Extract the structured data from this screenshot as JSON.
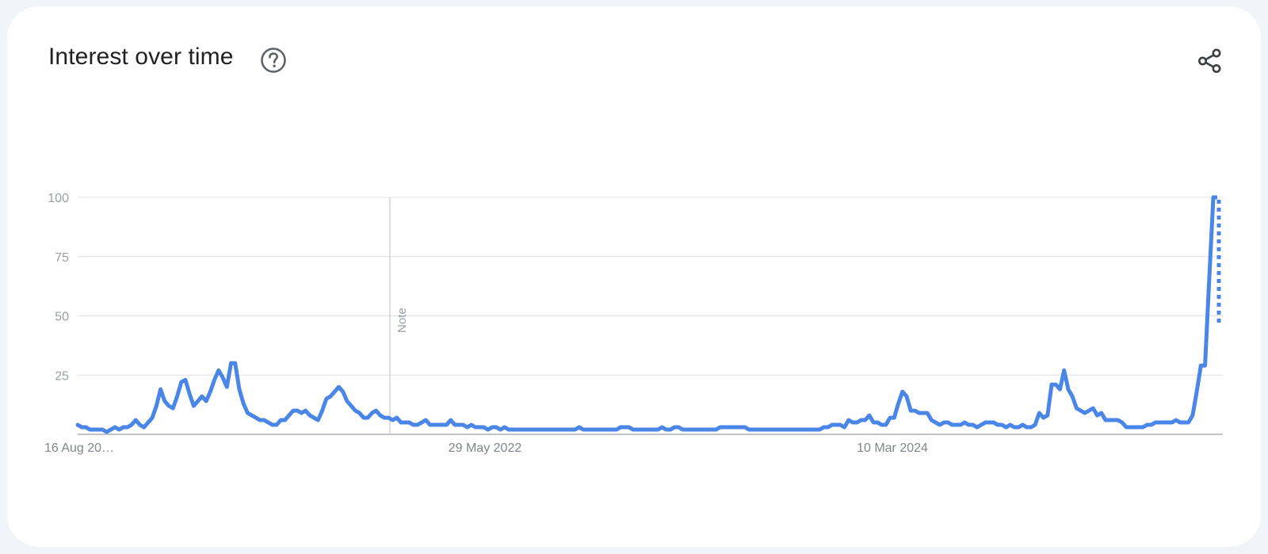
{
  "card": {
    "title": "Interest over time",
    "help_icon": "help-circle-icon",
    "share_icon": "share-icon"
  },
  "colors": {
    "series": "#4a86e8",
    "grid": "#e0e0e0",
    "axis": "#9aa0a6",
    "note_line": "#cfcfcf"
  },
  "chart_data": {
    "type": "line",
    "title": "Interest over time",
    "xlabel": "",
    "ylabel": "",
    "ylim": [
      0,
      100
    ],
    "yticks": [
      25,
      50,
      75,
      100
    ],
    "xtick_labels": [
      "16 Aug 20…",
      "29 May 2022",
      "10 Mar 2024"
    ],
    "grid": true,
    "legend": "none",
    "note": {
      "label": "Note"
    },
    "series": [
      {
        "values": [
          4,
          3,
          3,
          2,
          2,
          2,
          2,
          1,
          2,
          3,
          2,
          3,
          3,
          4,
          6,
          4,
          3,
          5,
          7,
          12,
          19,
          14,
          12,
          11,
          16,
          22,
          23,
          17,
          12,
          14,
          16,
          14,
          18,
          23,
          27,
          24,
          20,
          30,
          30,
          19,
          13,
          9,
          8,
          7,
          6,
          6,
          5,
          4,
          4,
          6,
          6,
          8,
          10,
          10,
          9,
          10,
          8,
          7,
          6,
          10,
          15,
          16,
          18,
          20,
          18,
          14,
          12,
          10,
          9,
          7,
          7,
          9,
          10,
          8,
          7,
          7,
          6,
          7,
          5,
          5,
          5,
          4,
          4,
          5,
          6,
          4,
          4,
          4,
          4,
          4,
          6,
          4,
          4,
          4,
          3,
          4,
          3,
          3,
          3,
          2,
          3,
          3,
          2,
          3,
          2,
          2,
          2,
          2,
          2,
          2,
          2,
          2,
          2,
          2,
          2,
          2,
          2,
          2,
          2,
          2,
          2,
          3,
          2,
          2,
          2,
          2,
          2,
          2,
          2,
          2,
          2,
          3,
          3,
          3,
          2,
          2,
          2,
          2,
          2,
          2,
          2,
          3,
          2,
          2,
          3,
          3,
          2,
          2,
          2,
          2,
          2,
          2,
          2,
          2,
          2,
          3,
          3,
          3,
          3,
          3,
          3,
          3,
          2,
          2,
          2,
          2,
          2,
          2,
          2,
          2,
          2,
          2,
          2,
          2,
          2,
          2,
          2,
          2,
          2,
          2,
          3,
          3,
          4,
          4,
          4,
          3,
          6,
          5,
          5,
          6,
          6,
          8,
          5,
          5,
          4,
          4,
          7,
          7,
          13,
          18,
          16,
          10,
          10,
          9,
          9,
          9,
          6,
          5,
          4,
          5,
          5,
          4,
          4,
          4,
          5,
          4,
          4,
          3,
          4,
          5,
          5,
          5,
          4,
          4,
          3,
          4,
          3,
          3,
          4,
          3,
          3,
          4,
          9,
          7,
          8,
          21,
          21,
          19,
          27,
          19,
          16,
          11,
          10,
          9,
          10,
          11,
          8,
          9,
          6,
          6,
          6,
          6,
          5,
          3,
          3,
          3,
          3,
          3,
          4,
          4,
          5,
          5,
          5,
          5,
          5,
          6,
          5,
          5,
          5,
          8,
          18,
          29,
          29,
          65,
          100
        ],
        "dotted_tail_from": 100,
        "dotted_tail_to": 47
      }
    ]
  }
}
